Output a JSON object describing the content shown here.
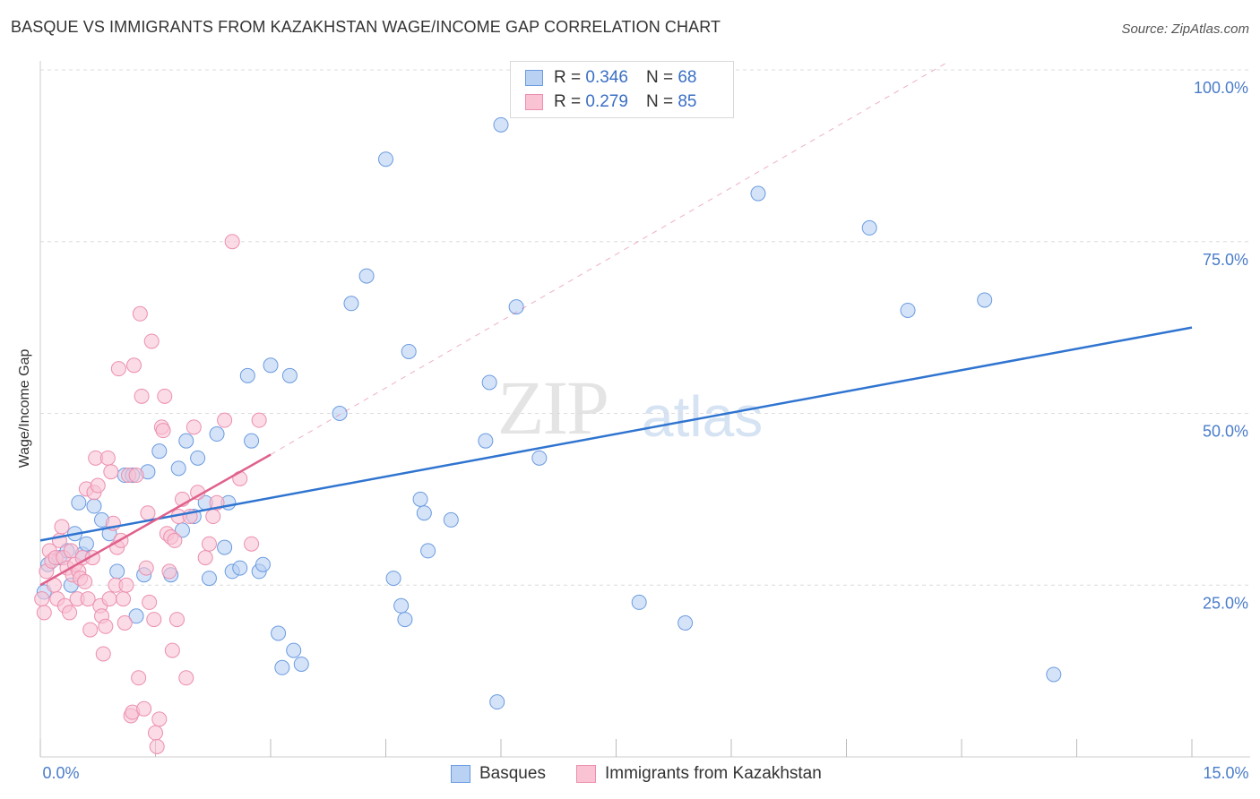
{
  "title": "BASQUE VS IMMIGRANTS FROM KAZAKHSTAN WAGE/INCOME GAP CORRELATION CHART",
  "source": "Source: ZipAtlas.com",
  "watermark": {
    "zip": "ZIP",
    "atlas": "atlas"
  },
  "colors": {
    "blue_fill": "#b9d1f3",
    "blue_stroke": "#6a9be0",
    "blue_line": "#2f74d0",
    "pink_fill": "#f9c3d3",
    "pink_stroke": "#ec8fae",
    "pink_line": "#e0608c",
    "grid": "#dcdcdc",
    "tick_label": "#4a7cc9"
  },
  "legend": {
    "rows": [
      {
        "r_label": "R =",
        "r_value": "0.346",
        "n_label": "N =",
        "n_value": "68"
      },
      {
        "r_label": "R =",
        "r_value": "0.279",
        "n_label": "N =",
        "n_value": "85"
      }
    ]
  },
  "chart_data": {
    "type": "scatter",
    "title": "BASQUE VS IMMIGRANTS FROM KAZAKHSTAN WAGE/INCOME GAP CORRELATION CHART",
    "xlabel": "",
    "ylabel": "Wage/Income Gap",
    "xlim": [
      0,
      15
    ],
    "ylim": [
      0,
      100
    ],
    "x_tick_labels": [
      "0.0%",
      "15.0%"
    ],
    "y_ticks": [
      25,
      50,
      75,
      100
    ],
    "y_tick_labels": [
      "25.0%",
      "50.0%",
      "75.0%",
      "100.0%"
    ],
    "series": [
      {
        "name": "Basques",
        "r": 0.346,
        "n": 68,
        "trend": {
          "x": [
            0,
            15
          ],
          "y": [
            31.5,
            62.5
          ]
        },
        "points": [
          [
            0.05,
            24
          ],
          [
            0.1,
            28
          ],
          [
            0.25,
            29
          ],
          [
            0.35,
            30
          ],
          [
            0.4,
            25
          ],
          [
            0.45,
            32.5
          ],
          [
            0.5,
            37
          ],
          [
            0.55,
            29.5
          ],
          [
            0.6,
            31
          ],
          [
            0.7,
            36.5
          ],
          [
            0.8,
            34.5
          ],
          [
            0.9,
            32.5
          ],
          [
            1.0,
            27
          ],
          [
            1.1,
            41
          ],
          [
            1.2,
            41
          ],
          [
            1.25,
            20.5
          ],
          [
            1.35,
            26.5
          ],
          [
            1.4,
            41.5
          ],
          [
            1.55,
            44.5
          ],
          [
            1.7,
            26.5
          ],
          [
            1.8,
            42
          ],
          [
            1.85,
            33
          ],
          [
            1.9,
            46
          ],
          [
            2.0,
            35
          ],
          [
            2.05,
            43.5
          ],
          [
            2.15,
            37
          ],
          [
            2.2,
            26
          ],
          [
            2.3,
            47
          ],
          [
            2.4,
            30.5
          ],
          [
            2.45,
            37
          ],
          [
            2.5,
            27
          ],
          [
            2.6,
            27.5
          ],
          [
            2.7,
            55.5
          ],
          [
            2.75,
            46
          ],
          [
            2.85,
            27
          ],
          [
            2.9,
            28
          ],
          [
            3.0,
            57
          ],
          [
            3.1,
            18
          ],
          [
            3.15,
            13
          ],
          [
            3.25,
            55.5
          ],
          [
            3.3,
            15.5
          ],
          [
            3.4,
            13.5
          ],
          [
            3.9,
            50
          ],
          [
            4.05,
            66
          ],
          [
            4.25,
            70
          ],
          [
            4.5,
            87
          ],
          [
            4.6,
            26
          ],
          [
            4.7,
            22
          ],
          [
            4.75,
            20
          ],
          [
            4.8,
            59
          ],
          [
            4.95,
            37.5
          ],
          [
            5.0,
            35.5
          ],
          [
            5.05,
            30
          ],
          [
            5.35,
            34.5
          ],
          [
            5.8,
            46
          ],
          [
            5.85,
            54.5
          ],
          [
            5.95,
            8
          ],
          [
            6.0,
            92
          ],
          [
            6.2,
            65.5
          ],
          [
            6.5,
            43.5
          ],
          [
            7.8,
            22.5
          ],
          [
            8.4,
            19.5
          ],
          [
            9.35,
            82
          ],
          [
            10.8,
            77
          ],
          [
            11.3,
            65
          ],
          [
            12.3,
            66.5
          ],
          [
            13.2,
            12
          ]
        ]
      },
      {
        "name": "Immigrants from Kazakhstan",
        "r": 0.279,
        "n": 85,
        "trend": {
          "x": [
            0,
            3.0
          ],
          "y": [
            25,
            44
          ]
        },
        "dashed_extension": {
          "x": [
            3.0,
            11.8
          ],
          "y": [
            44,
            101
          ]
        },
        "points": [
          [
            0.02,
            23
          ],
          [
            0.05,
            21
          ],
          [
            0.08,
            27
          ],
          [
            0.12,
            30
          ],
          [
            0.15,
            28.5
          ],
          [
            0.18,
            25
          ],
          [
            0.2,
            29
          ],
          [
            0.22,
            23
          ],
          [
            0.25,
            31.5
          ],
          [
            0.28,
            33.5
          ],
          [
            0.3,
            29
          ],
          [
            0.32,
            22
          ],
          [
            0.35,
            27.5
          ],
          [
            0.38,
            21
          ],
          [
            0.4,
            30
          ],
          [
            0.42,
            26.5
          ],
          [
            0.45,
            28
          ],
          [
            0.48,
            23
          ],
          [
            0.5,
            27
          ],
          [
            0.52,
            26
          ],
          [
            0.55,
            29
          ],
          [
            0.58,
            25.5
          ],
          [
            0.6,
            39
          ],
          [
            0.62,
            23
          ],
          [
            0.65,
            18.5
          ],
          [
            0.68,
            29
          ],
          [
            0.7,
            38.5
          ],
          [
            0.72,
            43.5
          ],
          [
            0.75,
            39.5
          ],
          [
            0.78,
            22
          ],
          [
            0.8,
            20.5
          ],
          [
            0.82,
            15
          ],
          [
            0.85,
            19
          ],
          [
            0.88,
            43.5
          ],
          [
            0.9,
            23
          ],
          [
            0.92,
            41.5
          ],
          [
            0.95,
            34
          ],
          [
            0.98,
            25
          ],
          [
            1.0,
            30.5
          ],
          [
            1.02,
            56.5
          ],
          [
            1.05,
            31.5
          ],
          [
            1.08,
            23
          ],
          [
            1.1,
            19.5
          ],
          [
            1.12,
            25
          ],
          [
            1.15,
            41
          ],
          [
            1.18,
            6
          ],
          [
            1.2,
            6.5
          ],
          [
            1.22,
            57
          ],
          [
            1.25,
            41
          ],
          [
            1.28,
            11.5
          ],
          [
            1.3,
            64.5
          ],
          [
            1.32,
            52.5
          ],
          [
            1.35,
            7
          ],
          [
            1.38,
            27.5
          ],
          [
            1.4,
            35.5
          ],
          [
            1.42,
            22.5
          ],
          [
            1.45,
            60.5
          ],
          [
            1.48,
            20
          ],
          [
            1.5,
            3.5
          ],
          [
            1.52,
            1.5
          ],
          [
            1.55,
            5.5
          ],
          [
            1.58,
            48
          ],
          [
            1.6,
            47.5
          ],
          [
            1.62,
            52.5
          ],
          [
            1.65,
            32.5
          ],
          [
            1.68,
            27
          ],
          [
            1.7,
            32
          ],
          [
            1.72,
            15.5
          ],
          [
            1.75,
            31.5
          ],
          [
            1.78,
            20
          ],
          [
            1.8,
            35
          ],
          [
            1.85,
            37.5
          ],
          [
            1.9,
            11.5
          ],
          [
            1.95,
            35
          ],
          [
            2.0,
            48
          ],
          [
            2.05,
            38.5
          ],
          [
            2.15,
            29
          ],
          [
            2.2,
            31
          ],
          [
            2.25,
            35
          ],
          [
            2.3,
            37
          ],
          [
            2.4,
            49
          ],
          [
            2.5,
            75
          ],
          [
            2.6,
            40.5
          ],
          [
            2.75,
            31
          ],
          [
            2.85,
            49
          ]
        ]
      }
    ]
  },
  "bottom_legend": [
    {
      "label": "Basques"
    },
    {
      "label": "Immigrants from Kazakhstan"
    }
  ]
}
